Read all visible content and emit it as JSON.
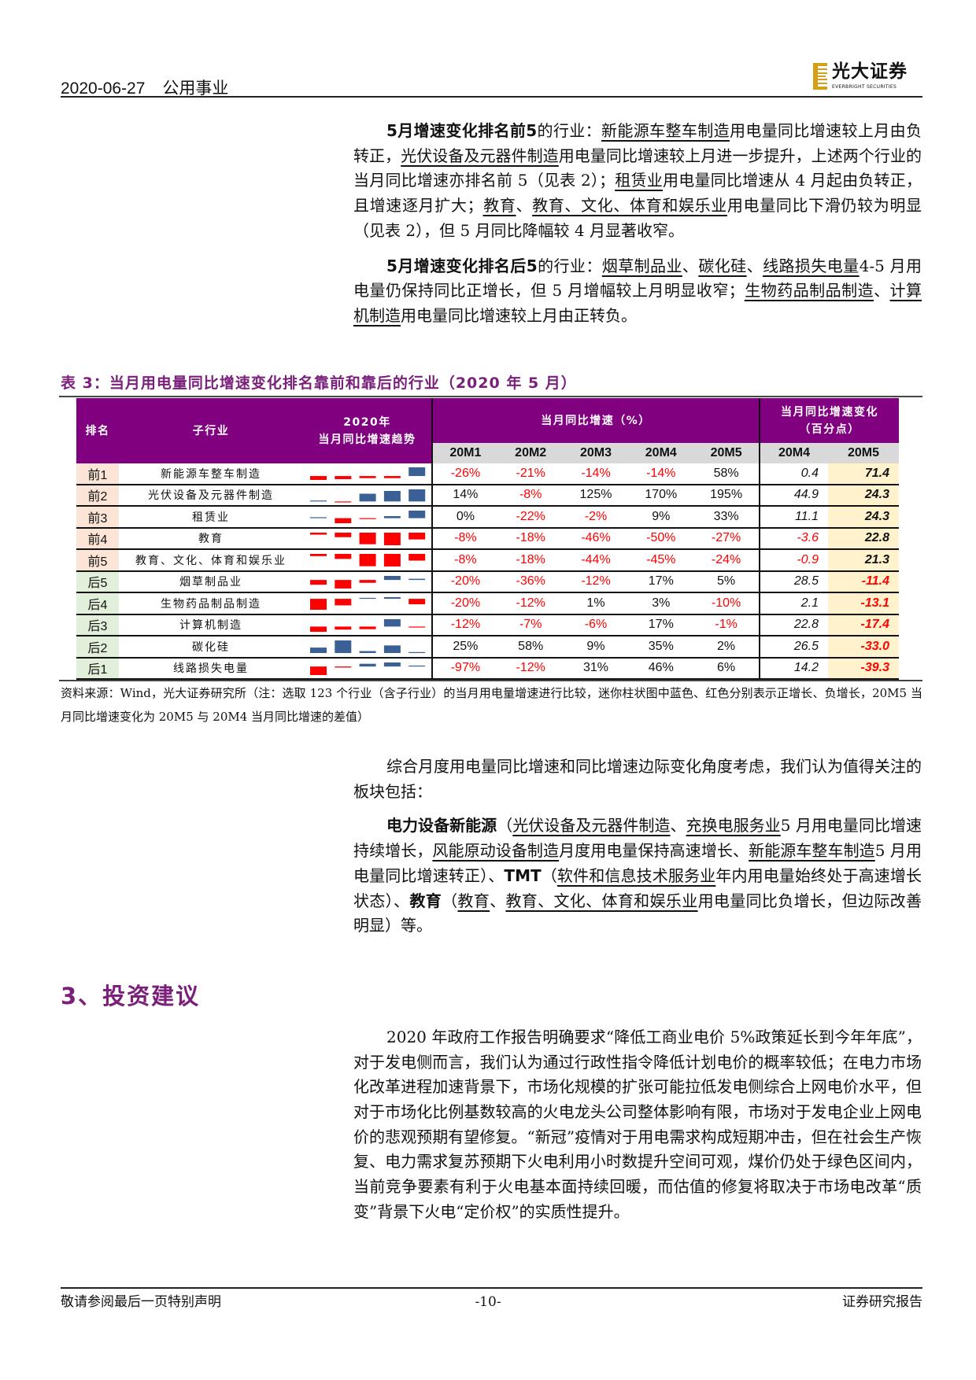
{
  "header": {
    "date": "2020-06-27",
    "sector": "公用事业",
    "logo_cn": "光大证券",
    "logo_en": "EVERBRIGHT SECURITIES",
    "brand_color": "#d4a017"
  },
  "body": {
    "p1": [
      {
        "t": "5月增速变化排名前5",
        "b": true
      },
      {
        "t": "的行业："
      },
      {
        "t": "新能源车整车制造",
        "u": true
      },
      {
        "t": "用电量同比增速较上月由负转正，"
      },
      {
        "t": "光伏设备及元器件制造",
        "u": true
      },
      {
        "t": "用电量同比增速较上月进一步提升，上述两个行业的当月同比增速亦排名前 5（见表 2）；"
      },
      {
        "t": "租赁业",
        "u": true
      },
      {
        "t": "用电量同比增速从 4 月起由负转正，且增速逐月扩大；"
      },
      {
        "t": "教育",
        "u": true
      },
      {
        "t": "、"
      },
      {
        "t": "教育、文化、体育和娱乐业",
        "u": true
      },
      {
        "t": "用电量同比下滑仍较为明显（见表 2），但 5 月同比降幅较 4 月显著收窄。"
      }
    ],
    "p2": [
      {
        "t": "5月增速变化排名后5",
        "b": true
      },
      {
        "t": "的行业："
      },
      {
        "t": "烟草制品业",
        "u": true
      },
      {
        "t": "、"
      },
      {
        "t": "碳化硅",
        "u": true
      },
      {
        "t": "、"
      },
      {
        "t": "线路损失电量",
        "u": true
      },
      {
        "t": "4-5 月用电量仍保持同比正增长，但 5 月增幅较上月明显收窄；"
      },
      {
        "t": "生物药品制品制造",
        "u": true
      },
      {
        "t": "、"
      },
      {
        "t": "计算机制造",
        "u": true
      },
      {
        "t": "用电量同比增速较上月由正转负。"
      }
    ],
    "p3": [
      {
        "t": "综合月度用电量同比增速和同比增速边际变化角度考虑，我们认为值得关注的板块包括："
      }
    ],
    "p4": [
      {
        "t": "电力设备新能源",
        "b": true
      },
      {
        "t": "（"
      },
      {
        "t": "光伏设备及元器件制造",
        "u": true
      },
      {
        "t": "、"
      },
      {
        "t": "充换电服务业",
        "u": true
      },
      {
        "t": "5 月用电量同比增速持续增长，"
      },
      {
        "t": "风能原动设备制造",
        "u": true
      },
      {
        "t": "月度用电量保持高速增长、"
      },
      {
        "t": "新能源车整车制造",
        "u": true
      },
      {
        "t": "5 月用电量同比增速转正）、"
      },
      {
        "t": "TMT",
        "b": true
      },
      {
        "t": "（"
      },
      {
        "t": "软件和信息技术服务业",
        "u": true
      },
      {
        "t": "年内用电量始终处于高速增长状态）、"
      },
      {
        "t": "教育",
        "b": true
      },
      {
        "t": "（"
      },
      {
        "t": "教育",
        "u": true
      },
      {
        "t": "、"
      },
      {
        "t": "教育、文化、体育和娱乐业",
        "u": true
      },
      {
        "t": "用电量同比负增长，但边际改善明显）等。"
      }
    ],
    "section_heading": "3、投资建议",
    "p5": [
      {
        "t": "2020 年政府工作报告明确要求“降低工商业电价 5%政策延长到今年年底”，对于发电侧而言，我们认为通过行政性指令降低计划电价的概率较低；在电力市场化改革进程加速背景下，市场化规模的扩张可能拉低发电侧综合上网电价水平，但对于市场化比例基数较高的火电龙头公司整体影响有限，市场对于发电企业上网电价的悲观预期有望修复。“新冠”疫情对于用电需求构成短期冲击，但在社会生产恢复、电力需求复苏预期下火电利用小时数提升空间可观，煤价仍处于绿色区间内，当前竞争要素有利于火电基本面持续回暖，而估值的修复将取决于市场电改革“质变”背景下火电“定价权”的实质性提升。"
      }
    ]
  },
  "table": {
    "title": "表 3：当月用电量同比增速变化排名靠前和靠后的行业（2020 年 5 月）",
    "headers": {
      "rank": "排名",
      "industry": "子行业",
      "trend_line1": "2020年",
      "trend_line2": "当月同比增速趋势",
      "growth": "当月同比增速（%）",
      "change_line1": "当月同比增速变化",
      "change_line2": "（百分点）"
    },
    "month_cols": [
      "20M1",
      "20M2",
      "20M3",
      "20M4",
      "20M5"
    ],
    "change_cols": [
      "20M4",
      "20M5"
    ],
    "colors": {
      "header": "#800080",
      "positive_bar": "#3a6096",
      "negative_bar": "#ff0000",
      "top_rank_bg": "#fce4d6",
      "bottom_rank_bg": "#e2efda",
      "highlight": "#fff2cc"
    },
    "rows": [
      {
        "rank": "前1",
        "group": "top",
        "name": "新能源车整车制造",
        "growth": [
          -26,
          -21,
          -14,
          -14,
          58
        ],
        "growth_text": [
          "-26%",
          "-21%",
          "-14%",
          "-14%",
          "58%"
        ],
        "change": [
          "0.4",
          "71.4"
        ]
      },
      {
        "rank": "前2",
        "group": "top",
        "name": "光伏设备及元器件制造",
        "growth": [
          14,
          -8,
          125,
          170,
          195
        ],
        "growth_text": [
          "14%",
          "-8%",
          "125%",
          "170%",
          "195%"
        ],
        "change": [
          "44.9",
          "24.3"
        ]
      },
      {
        "rank": "前3",
        "group": "top",
        "name": "租赁业",
        "growth": [
          0,
          -22,
          -2,
          9,
          33
        ],
        "growth_text": [
          "0%",
          "-22%",
          "-2%",
          "9%",
          "33%"
        ],
        "change": [
          "11.1",
          "24.3"
        ]
      },
      {
        "rank": "前4",
        "group": "top",
        "name": "教育",
        "growth": [
          -8,
          -18,
          -46,
          -50,
          -27
        ],
        "growth_text": [
          "-8%",
          "-18%",
          "-46%",
          "-50%",
          "-27%"
        ],
        "change": [
          "-3.6",
          "22.8"
        ]
      },
      {
        "rank": "前5",
        "group": "top",
        "name": "教育、文化、体育和娱乐业",
        "growth": [
          -8,
          -18,
          -44,
          -45,
          -24
        ],
        "growth_text": [
          "-8%",
          "-18%",
          "-44%",
          "-45%",
          "-24%"
        ],
        "change": [
          "-0.9",
          "21.3"
        ]
      },
      {
        "rank": "后5",
        "group": "bottom",
        "name": "烟草制品业",
        "growth": [
          -20,
          -36,
          -12,
          17,
          5
        ],
        "growth_text": [
          "-20%",
          "-36%",
          "-12%",
          "17%",
          "5%"
        ],
        "change": [
          "28.5",
          "-11.4"
        ]
      },
      {
        "rank": "后4",
        "group": "bottom",
        "name": "生物药品制品制造",
        "growth": [
          -20,
          -12,
          1,
          3,
          -10
        ],
        "growth_text": [
          "-20%",
          "-12%",
          "1%",
          "3%",
          "-10%"
        ],
        "change": [
          "2.1",
          "-13.1"
        ]
      },
      {
        "rank": "后3",
        "group": "bottom",
        "name": "计算机制造",
        "growth": [
          -12,
          -7,
          -6,
          17,
          -1
        ],
        "growth_text": [
          "-12%",
          "-7%",
          "-6%",
          "17%",
          "-1%"
        ],
        "change": [
          "22.8",
          "-17.4"
        ]
      },
      {
        "rank": "后2",
        "group": "bottom",
        "name": "碳化硅",
        "growth": [
          25,
          58,
          9,
          35,
          2
        ],
        "growth_text": [
          "25%",
          "58%",
          "9%",
          "35%",
          "2%"
        ],
        "change": [
          "26.5",
          "-33.0"
        ]
      },
      {
        "rank": "后1",
        "group": "bottom",
        "name": "线路损失电量",
        "growth": [
          -97,
          -12,
          31,
          46,
          6
        ],
        "growth_text": [
          "-97%",
          "-12%",
          "31%",
          "46%",
          "6%"
        ],
        "change": [
          "14.2",
          "-39.3"
        ]
      }
    ],
    "note": "资料来源：Wind，光大证券研究所（注：选取 123 个行业（含子行业）的当月用电量增速进行比较，迷你柱状图中蓝色、红色分别表示正增长、负增长，20M5 当月同比增速变化为 20M5 与 20M4 当月同比增速的差值）"
  },
  "footer": {
    "disclaimer": "敬请参阅最后一页特别声明",
    "page": "-10-",
    "report_type": "证券研究报告"
  }
}
